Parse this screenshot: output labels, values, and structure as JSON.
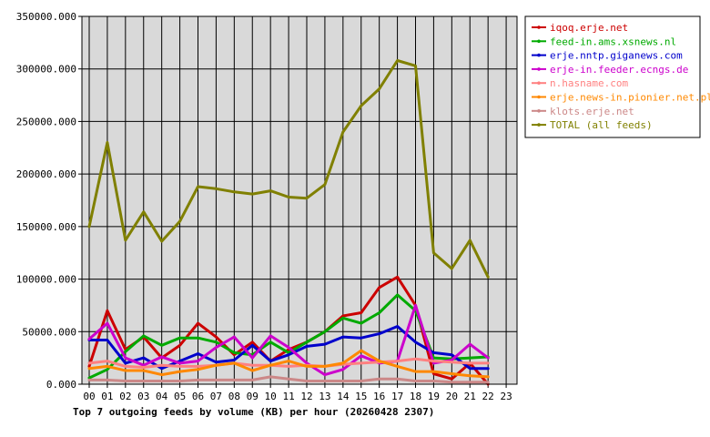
{
  "chart_data": {
    "type": "line",
    "title": "Top 7 outgoing feeds by volume (KB) per hour (20260428 2307)",
    "xlabel": "",
    "ylabel": "",
    "x_ticks": [
      "00",
      "01",
      "02",
      "03",
      "04",
      "05",
      "06",
      "07",
      "08",
      "09",
      "10",
      "11",
      "12",
      "13",
      "14",
      "15",
      "16",
      "17",
      "18",
      "19",
      "20",
      "21",
      "22",
      "23"
    ],
    "y_ticks": [
      "0.000",
      "50000.000",
      "100000.000",
      "150000.000",
      "200000.000",
      "250000.000",
      "300000.000",
      "350000.000"
    ],
    "ylim": [
      0,
      350000
    ],
    "grid": true,
    "legend_position": "right",
    "series": [
      {
        "name": "iqoq.erje.net",
        "color": "#cc0000",
        "values": [
          17000,
          70000,
          33000,
          45000,
          25000,
          37000,
          58000,
          45000,
          28000,
          40000,
          22000,
          33000,
          40000,
          50000,
          65000,
          68000,
          92000,
          102000,
          75000,
          10000,
          5000,
          20000,
          0,
          null
        ]
      },
      {
        "name": "feed-in.ams.xsnews.nl",
        "color": "#00aa00",
        "values": [
          6000,
          14000,
          31000,
          46000,
          37000,
          44000,
          44000,
          40000,
          30000,
          28000,
          40000,
          30000,
          40000,
          50000,
          63000,
          58000,
          68000,
          85000,
          70000,
          25000,
          24000,
          25000,
          26000,
          null
        ]
      },
      {
        "name": "erje.nntp.giganews.com",
        "color": "#0000cc",
        "values": [
          42000,
          42000,
          20000,
          25000,
          15000,
          22000,
          29000,
          21000,
          23000,
          37000,
          22000,
          28000,
          36000,
          38000,
          45000,
          44000,
          48000,
          55000,
          40000,
          30000,
          28000,
          15000,
          15000,
          null
        ]
      },
      {
        "name": "erje-in.feeder.ecngs.de",
        "color": "#cc00cc",
        "values": [
          43000,
          58000,
          25000,
          18000,
          26000,
          20000,
          22000,
          35000,
          45000,
          25000,
          46000,
          35000,
          20000,
          9000,
          14000,
          27000,
          20000,
          22000,
          75000,
          20000,
          23000,
          38000,
          25000,
          null
        ]
      },
      {
        "name": "n.hasname.com",
        "color": "#ff8080",
        "values": [
          20000,
          22000,
          17000,
          16000,
          18000,
          17000,
          17000,
          18000,
          20000,
          18000,
          18000,
          17000,
          18000,
          17000,
          19000,
          20000,
          21000,
          22000,
          24000,
          22000,
          21000,
          20000,
          20000,
          null
        ]
      },
      {
        "name": "erje.news-in.pionier.net.pl",
        "color": "#ff8800",
        "values": [
          15000,
          17000,
          13000,
          13000,
          9000,
          12000,
          14000,
          18000,
          20000,
          13000,
          18000,
          22000,
          17000,
          17000,
          20000,
          32000,
          22000,
          17000,
          12000,
          12000,
          10000,
          8000,
          7000,
          null
        ]
      },
      {
        "name": "klots.erje.net",
        "color": "#cc8888",
        "values": [
          4000,
          4000,
          3000,
          3000,
          3000,
          3000,
          4000,
          4000,
          4000,
          4000,
          7000,
          5000,
          3000,
          3000,
          3000,
          3000,
          5000,
          5000,
          3000,
          3000,
          2000,
          2000,
          2000,
          null
        ]
      },
      {
        "name": "TOTAL (all feeds)",
        "color": "#808000",
        "values": [
          150000,
          230000,
          137000,
          164000,
          136000,
          155000,
          188000,
          186000,
          183000,
          181000,
          184000,
          178000,
          177000,
          190000,
          240000,
          265000,
          281000,
          308000,
          303000,
          125000,
          110000,
          137000,
          102000,
          null
        ]
      }
    ]
  }
}
